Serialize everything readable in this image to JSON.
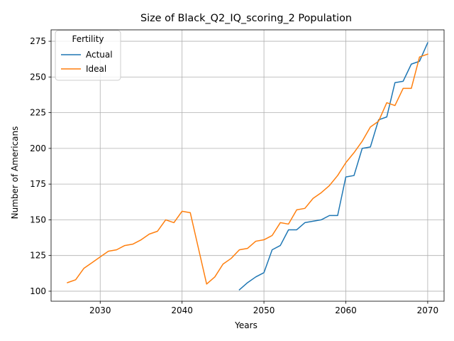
{
  "chart_data": {
    "type": "line",
    "title": "Size of Black_Q2_IQ_scoring_2 Population",
    "xlabel": "Years",
    "ylabel": "Number of Americans",
    "xlim": [
      2024,
      2072
    ],
    "ylim": [
      93,
      283
    ],
    "xticks": [
      2030,
      2040,
      2050,
      2060,
      2070
    ],
    "yticks": [
      100,
      125,
      150,
      175,
      200,
      225,
      250,
      275
    ],
    "grid": true,
    "legend": {
      "title": "Fertility",
      "placement": "top-left"
    },
    "series": [
      {
        "name": "Actual",
        "color": "#1f77b4",
        "points": [
          [
            2047,
            101
          ],
          [
            2048,
            106
          ],
          [
            2049,
            110
          ],
          [
            2050,
            113
          ],
          [
            2051,
            129
          ],
          [
            2052,
            132
          ],
          [
            2053,
            143
          ],
          [
            2054,
            143
          ],
          [
            2055,
            148
          ],
          [
            2056,
            149
          ],
          [
            2057,
            150
          ],
          [
            2058,
            153
          ],
          [
            2059,
            153
          ],
          [
            2060,
            180
          ],
          [
            2061,
            181
          ],
          [
            2062,
            200
          ],
          [
            2063,
            201
          ],
          [
            2064,
            220
          ],
          [
            2065,
            222
          ],
          [
            2066,
            246
          ],
          [
            2067,
            247
          ],
          [
            2068,
            259
          ],
          [
            2069,
            261
          ],
          [
            2070,
            274
          ]
        ]
      },
      {
        "name": "Ideal",
        "color": "#ff7f0e",
        "points": [
          [
            2026,
            106
          ],
          [
            2027,
            108
          ],
          [
            2028,
            116
          ],
          [
            2029,
            120
          ],
          [
            2030,
            124
          ],
          [
            2031,
            128
          ],
          [
            2032,
            129
          ],
          [
            2033,
            132
          ],
          [
            2034,
            133
          ],
          [
            2035,
            136
          ],
          [
            2036,
            140
          ],
          [
            2037,
            142
          ],
          [
            2038,
            150
          ],
          [
            2039,
            148
          ],
          [
            2040,
            156
          ],
          [
            2041,
            155
          ],
          [
            2042,
            130
          ],
          [
            2043,
            105
          ],
          [
            2044,
            110
          ],
          [
            2045,
            119
          ],
          [
            2046,
            123
          ],
          [
            2047,
            129
          ],
          [
            2048,
            130
          ],
          [
            2049,
            135
          ],
          [
            2050,
            136
          ],
          [
            2051,
            139
          ],
          [
            2052,
            148
          ],
          [
            2053,
            147
          ],
          [
            2054,
            157
          ],
          [
            2055,
            158
          ],
          [
            2056,
            165
          ],
          [
            2057,
            169
          ],
          [
            2058,
            174
          ],
          [
            2059,
            181
          ],
          [
            2060,
            190
          ],
          [
            2061,
            197
          ],
          [
            2062,
            205
          ],
          [
            2063,
            215
          ],
          [
            2064,
            219
          ],
          [
            2065,
            232
          ],
          [
            2066,
            230
          ],
          [
            2067,
            242
          ],
          [
            2068,
            242
          ],
          [
            2069,
            264
          ],
          [
            2070,
            266
          ]
        ]
      }
    ]
  }
}
